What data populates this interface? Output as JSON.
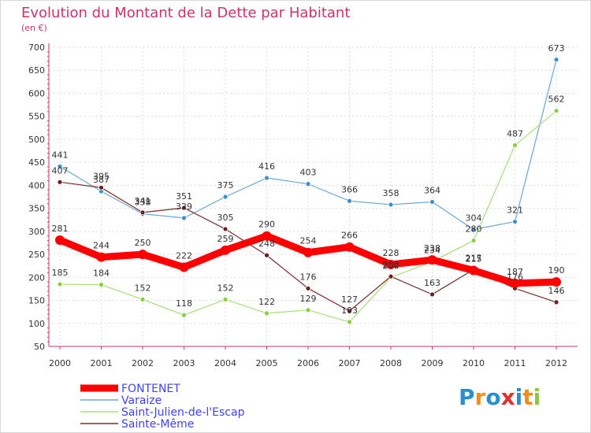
{
  "chart_data": {
    "type": "line",
    "title": "Evolution du Montant de la Dette par Habitant",
    "subtitle": "(en €)",
    "xlabel": "",
    "ylabel": "",
    "categories": [
      "2000",
      "2001",
      "2002",
      "2003",
      "2004",
      "2005",
      "2006",
      "2007",
      "2008",
      "2009",
      "2010",
      "2011",
      "2012"
    ],
    "ylim": [
      50,
      700
    ],
    "yticks": [
      50,
      100,
      150,
      200,
      250,
      300,
      350,
      400,
      450,
      500,
      550,
      600,
      650,
      700
    ],
    "grid": true,
    "legend_position": "bottom-left",
    "series": [
      {
        "name": "FONTENET",
        "color": "#ff0000",
        "values": [
          281,
          244,
          250,
          222,
          259,
          290,
          254,
          266,
          228,
          238,
          215,
          187,
          190
        ],
        "labels": [
          "281",
          "244",
          "250",
          "222",
          "259",
          "290",
          "254",
          "266",
          "228",
          "238",
          "215",
          "187",
          "190"
        ]
      },
      {
        "name": "Varaize",
        "color": "#5599cc",
        "values": [
          441,
          387,
          338,
          329,
          375,
          416,
          403,
          366,
          358,
          364,
          304,
          321,
          673
        ],
        "labels": [
          "441",
          "387",
          "338",
          "329",
          "375",
          "416",
          "403",
          "366",
          "358",
          "364",
          "304",
          "321",
          "673"
        ]
      },
      {
        "name": "Saint-Julien-de-l'Escap",
        "color": "#99dd66",
        "values": [
          185,
          184,
          152,
          118,
          152,
          122,
          129,
          103,
          200,
          234,
          280,
          487,
          562
        ],
        "labels": [
          "185",
          "184",
          "152",
          "118",
          "152",
          "122",
          "129",
          "103",
          "200",
          "234",
          "280",
          "487",
          "562"
        ]
      },
      {
        "name": "Sainte-Même",
        "color": "#7a2a2a",
        "values": [
          407,
          395,
          341,
          351,
          305,
          248,
          176,
          127,
          202,
          163,
          217,
          176,
          146
        ],
        "labels": [
          "407",
          "395",
          "341",
          "351",
          "305",
          "248",
          "176",
          "127",
          "202",
          "163",
          "217",
          "176",
          "146"
        ]
      }
    ]
  },
  "logo": {
    "text": "Proxiti",
    "letters": [
      "P",
      "r",
      "o",
      "x",
      "i",
      "t",
      "i"
    ],
    "colors": [
      "#2a8fd0",
      "#f28c1a",
      "#2a8fd0",
      "#e03030",
      "#2a8fd0",
      "#f28c1a",
      "#8cc63f"
    ]
  }
}
